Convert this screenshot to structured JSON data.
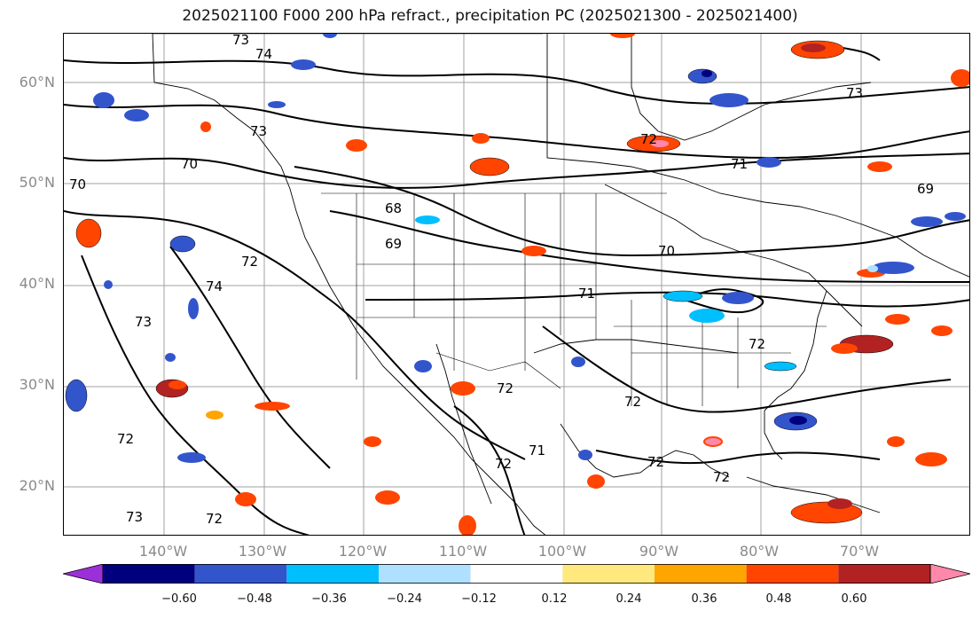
{
  "title": "2025021100 F000 200 hPa refract., precipitation PC (2025021300 - 2025021400)",
  "lat_labels": [
    "60°N",
    "50°N",
    "40°N",
    "30°N",
    "20°N"
  ],
  "lon_labels": [
    "140°W",
    "130°W",
    "120°W",
    "110°W",
    "100°W",
    "90°W",
    "80°W",
    "70°W"
  ],
  "colorbar": {
    "colors": [
      "#9b30d9",
      "#00007f",
      "#3355cc",
      "#00bfff",
      "#b0e0ff",
      "#ffffff",
      "#ffe97f",
      "#ffa500",
      "#ff4500",
      "#b22222",
      "#ff88aa"
    ],
    "tick_labels": [
      "−0.60",
      "−0.48",
      "−0.36",
      "−0.24",
      "−0.12",
      "0.12",
      "0.24",
      "0.36",
      "0.48",
      "0.60"
    ]
  },
  "contour_labels": [
    "73",
    "74",
    "73",
    "73",
    "72",
    "70",
    "70",
    "71",
    "73",
    "72",
    "74",
    "69",
    "68",
    "69",
    "70",
    "71",
    "72",
    "72",
    "72",
    "73",
    "72",
    "72",
    "72",
    "72",
    "71",
    "72"
  ]
}
